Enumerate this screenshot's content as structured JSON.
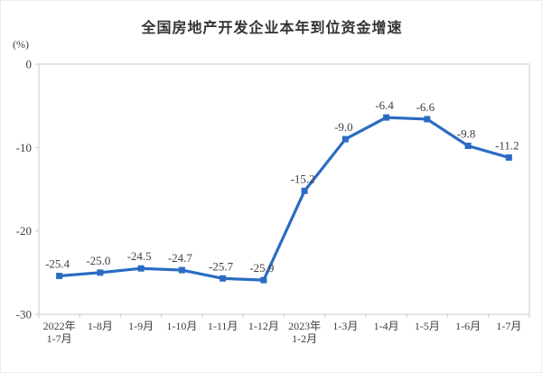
{
  "page": {
    "title": "全国房地产开发企业本年到位资金增速",
    "unit_label": "(%)"
  },
  "chart_data": {
    "type": "line",
    "title": "全国房地产开发企业本年到位资金增速",
    "ylabel": "(%)",
    "xlabel": "",
    "categories": [
      "2022年\n1-7月",
      "1-8月",
      "1-9月",
      "1-10月",
      "1-11月",
      "1-12月",
      "2023年\n1-2月",
      "1-3月",
      "1-4月",
      "1-5月",
      "1-6月",
      "1-7月"
    ],
    "series": [
      {
        "name": "本年到位资金增速",
        "values": [
          -25.4,
          -25.0,
          -24.5,
          -24.7,
          -25.7,
          -25.9,
          -15.2,
          -9.0,
          -6.4,
          -6.6,
          -9.8,
          -11.2
        ],
        "data_labels": [
          "-25.4",
          "-25.0",
          "-24.5",
          "-24.7",
          "-25.7",
          "-25.9",
          "-15.2",
          "-9.0",
          "-6.4",
          "-6.6",
          "-9.8",
          "-11.2"
        ]
      }
    ],
    "y_ticks": [
      "0",
      "-10",
      "-20",
      "-30"
    ],
    "y_tick_values": [
      0,
      -10,
      -20,
      -30
    ],
    "ylim": [
      -30,
      0
    ],
    "grid": false,
    "legend_position": "none",
    "colors": {
      "line": "#2b6cc2",
      "marker": "#2b6cc2",
      "axis": "#d9d9d9",
      "tick_text": "#3f3f3f",
      "data_label_text": "#404040",
      "title_text": "#333333"
    },
    "marker_shape": "square"
  }
}
